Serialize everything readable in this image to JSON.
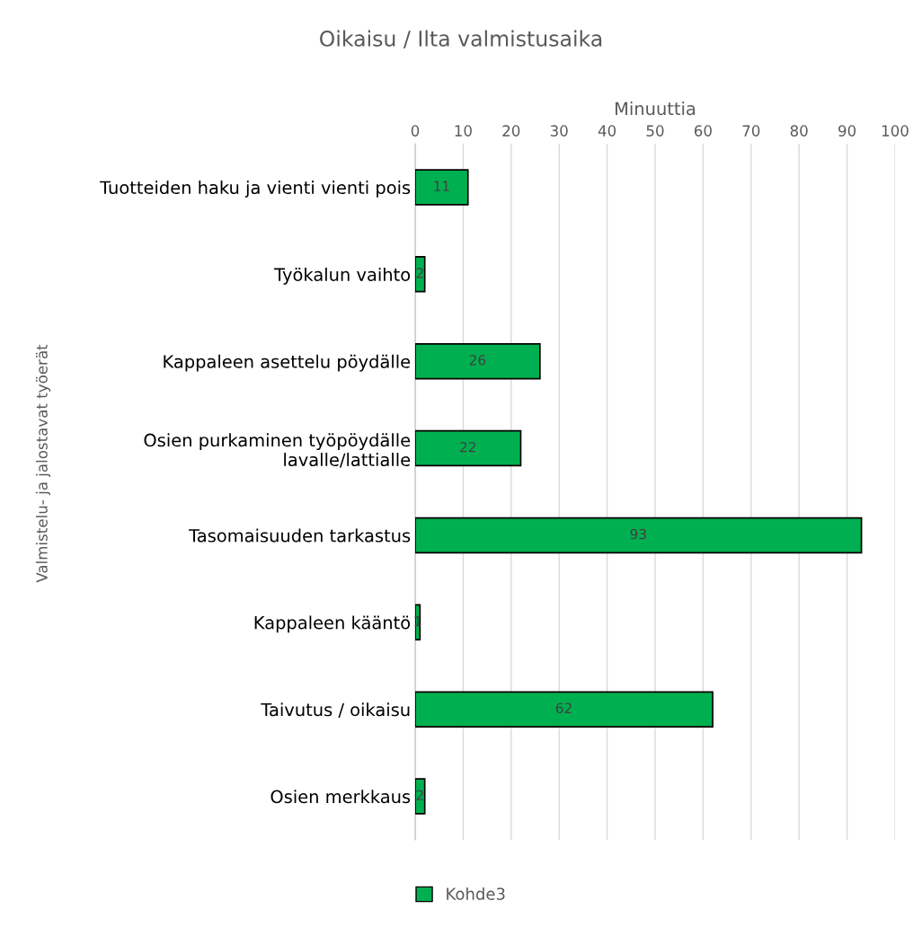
{
  "chart_data": {
    "type": "bar",
    "orientation": "horizontal",
    "title": "Oikaisu / Ilta valmistusaika",
    "xlabel": "Minuuttia",
    "ylabel": "Valmistelu- ja jalostavat työerät",
    "categories": [
      "Tuotteiden haku ja vienti vienti pois",
      "Työkalun vaihto",
      "Kappaleen asettelu pöydälle",
      "Osien purkaminen työpöydälle\nlavalle/lattialle",
      "Tasomaisuuden tarkastus",
      "Kappaleen kääntö",
      "Taivutus / oikaisu",
      "Osien merkkaus"
    ],
    "series": [
      {
        "name": "Kohde3",
        "color": "#00b050",
        "values": [
          11,
          2,
          26,
          22,
          93,
          1,
          62,
          2
        ]
      }
    ],
    "xlim": [
      0,
      100
    ],
    "xticks": [
      0,
      10,
      20,
      30,
      40,
      50,
      60,
      70,
      80,
      90,
      100
    ],
    "grid": "x",
    "legend": "bottom",
    "data_labels": true
  }
}
